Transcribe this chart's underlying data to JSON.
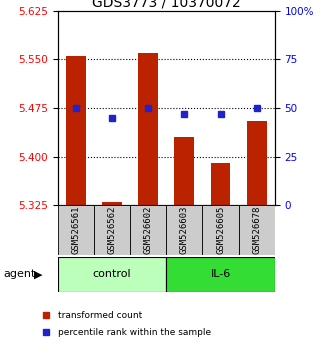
{
  "title": "GDS3773 / 10370072",
  "samples": [
    "GSM526561",
    "GSM526562",
    "GSM526602",
    "GSM526603",
    "GSM526605",
    "GSM526678"
  ],
  "red_values": [
    5.555,
    5.33,
    5.56,
    5.43,
    5.39,
    5.455
  ],
  "blue_values": [
    50,
    45,
    50,
    47,
    47,
    50
  ],
  "ymin": 5.325,
  "ymax": 5.625,
  "yticks": [
    5.325,
    5.4,
    5.475,
    5.55,
    5.625
  ],
  "right_yticks": [
    0,
    25,
    50,
    75,
    100
  ],
  "right_yticklabels": [
    "0",
    "25",
    "50",
    "75",
    "100%"
  ],
  "hline_values": [
    5.4,
    5.475,
    5.55
  ],
  "bar_color": "#bb2200",
  "dot_color": "#2222cc",
  "control_color": "#bbffbb",
  "il6_color": "#33dd33",
  "sample_box_color": "#cccccc",
  "agent_label": "agent",
  "legend_bar_label": "transformed count",
  "legend_dot_label": "percentile rank within the sample",
  "bar_width": 0.55,
  "baseline": 5.325,
  "title_fontsize": 10,
  "tick_fontsize": 7.5,
  "label_fontsize": 8,
  "sample_label_fontsize": 6.5
}
